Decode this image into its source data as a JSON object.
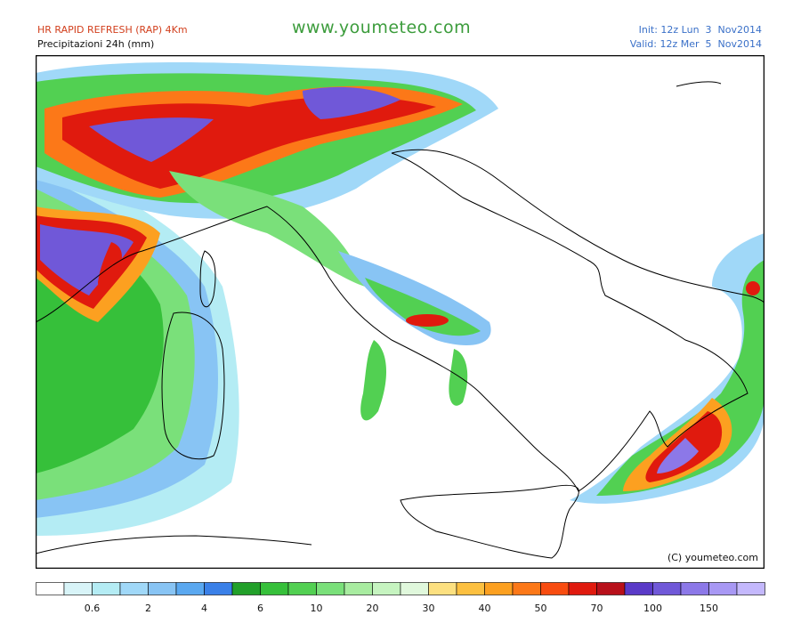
{
  "header": {
    "model": "HR RAPID REFRESH (RAP) 4Km",
    "field": "Precipitazioni 24h (mm)",
    "site": "www.youmeteo.com",
    "init": "Init: 12z Lun  3  Nov2014",
    "valid": "Valid: 12z Mer  5  Nov2014"
  },
  "map": {
    "copyright": "(C) youmeteo.com"
  },
  "legend": {
    "labels": [
      "0.6",
      "2",
      "4",
      "6",
      "10",
      "20",
      "30",
      "40",
      "50",
      "70",
      "100",
      "150"
    ],
    "colors": [
      "#ffffff",
      "#d8f4f8",
      "#b4ecf4",
      "#a0d8f8",
      "#88c4f4",
      "#5aa8f0",
      "#3a80e8",
      "#22a02a",
      "#36c03a",
      "#52d052",
      "#7ae07a",
      "#a8eca0",
      "#c6f4c0",
      "#e0f8dc",
      "#fce080",
      "#fcc040",
      "#fca020",
      "#fc7818",
      "#f84c10",
      "#e01a0e",
      "#b8101a",
      "#5a3ac8",
      "#7058d8",
      "#8c78e8",
      "#a898f4",
      "#c4b8fc"
    ]
  }
}
